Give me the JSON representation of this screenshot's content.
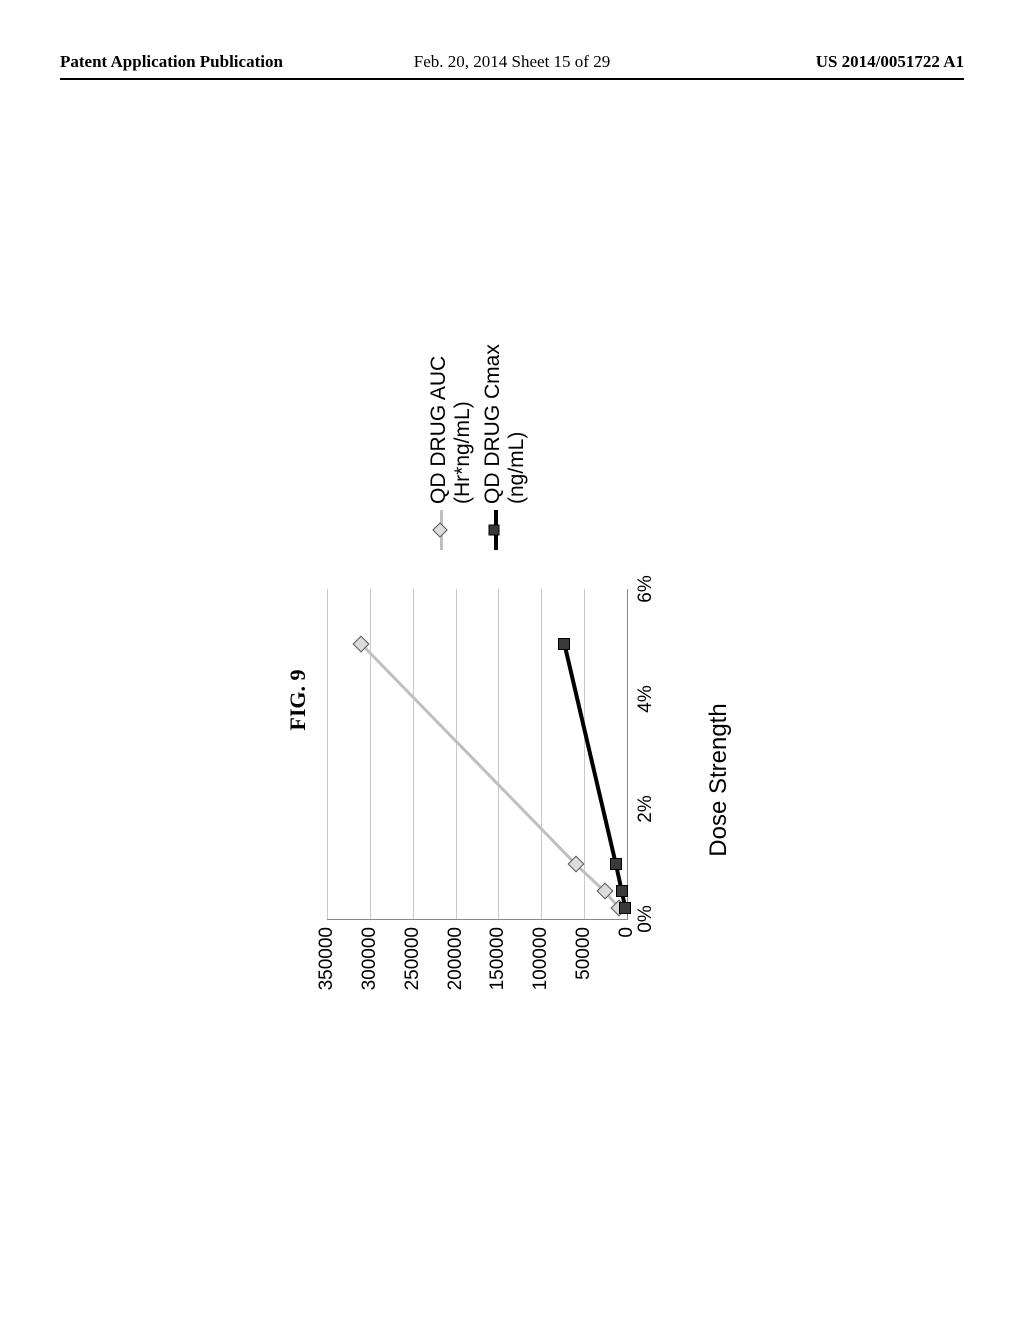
{
  "header": {
    "left": "Patent Application Publication",
    "center": "Feb. 20, 2014  Sheet 15 of 29",
    "right": "US 2014/0051722 A1"
  },
  "figure": {
    "label": "FIG. 9",
    "type": "line",
    "x_axis": {
      "label": "Dose Strength",
      "label_fontsize": 24,
      "tick_fontsize": 19,
      "min": 0,
      "max": 6,
      "tick_step": 2,
      "tick_format_suffix": "%",
      "ticks": [
        0,
        2,
        4,
        6
      ]
    },
    "y_axis": {
      "tick_fontsize": 19,
      "min": 0,
      "max": 350000,
      "tick_step": 50000,
      "ticks": [
        0,
        50000,
        100000,
        150000,
        200000,
        250000,
        300000,
        350000
      ]
    },
    "grid_color": "#c9c9c9",
    "axis_color": "#888888",
    "background_color": "#ffffff",
    "series": [
      {
        "name": "QD DRUG AUC",
        "legend_label": "QD DRUG AUC\n(Hr*ng/mL)",
        "line_color": "#bfbfbf",
        "line_width": 3,
        "marker_shape": "diamond",
        "marker_fill": "#dcdcdc",
        "marker_border": "#555555",
        "marker_size": 12,
        "points": [
          {
            "x": 0.2,
            "y": 9000
          },
          {
            "x": 0.5,
            "y": 26000
          },
          {
            "x": 1.0,
            "y": 60000
          },
          {
            "x": 5.0,
            "y": 310000
          }
        ]
      },
      {
        "name": "QD DRUG Cmax",
        "legend_label": "QD DRUG Cmax\n(ng/mL)",
        "line_color": "#000000",
        "line_width": 4,
        "marker_shape": "square",
        "marker_fill": "#3a3a3a",
        "marker_border": "#000000",
        "marker_size": 12,
        "points": [
          {
            "x": 0.2,
            "y": 2000
          },
          {
            "x": 0.5,
            "y": 6000
          },
          {
            "x": 1.0,
            "y": 13000
          },
          {
            "x": 5.0,
            "y": 73000
          }
        ]
      }
    ]
  }
}
